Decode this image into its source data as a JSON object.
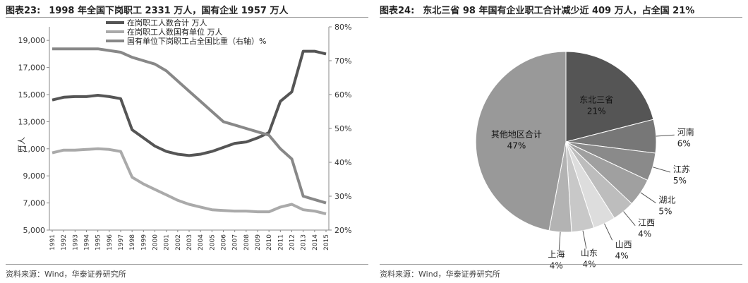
{
  "left": {
    "figure_no": "图表23:",
    "title": "1998 年全国下岗职工 2331 万人，国有企业 1957 万人",
    "source": "资料来源：Wind，华泰证券研究所"
  },
  "right": {
    "figure_no": "图表24:",
    "title": "东北三省 98 年国有企业职工合计减少近 409 万人，占全国 21%",
    "source": "资料来源：Wind，华泰证券研究所"
  },
  "colors": {
    "total": "#555555",
    "state": "#aaaaaa",
    "share": "#888888"
  },
  "chart_data": [
    {
      "type": "line",
      "ylabel": "万人",
      "y2label": "",
      "ylim": [
        5000,
        20000
      ],
      "y2lim": [
        20,
        80
      ],
      "yticks": [
        "5,000",
        "7,000",
        "9,000",
        "11,000",
        "13,000",
        "15,000",
        "17,000",
        "19,000"
      ],
      "y2ticks": [
        "20%",
        "30%",
        "40%",
        "50%",
        "60%",
        "70%",
        "80%"
      ],
      "x": [
        "1991",
        "1992",
        "1993",
        "1994",
        "1995",
        "1996",
        "1997",
        "1998",
        "1999",
        "2000",
        "2001",
        "2002",
        "2003",
        "2004",
        "2005",
        "2006",
        "2007",
        "2008",
        "2009",
        "2010",
        "2011",
        "2012",
        "2013",
        "2014",
        "2015"
      ],
      "legend": "top-center",
      "series": [
        {
          "name": "在岗职工人数合计 万人",
          "axis": "left",
          "color_key": "total",
          "values": [
            14600,
            14800,
            14850,
            14850,
            14950,
            14850,
            14700,
            12400,
            11800,
            11200,
            10800,
            10600,
            10500,
            10600,
            10800,
            11100,
            11400,
            11500,
            11800,
            12200,
            14500,
            15200,
            18200,
            18200,
            18000
          ]
        },
        {
          "name": "在岗职工人数国有单位 万人",
          "axis": "left",
          "color_key": "state",
          "values": [
            10700,
            10900,
            10900,
            10950,
            11000,
            10950,
            10800,
            8900,
            8400,
            8000,
            7600,
            7200,
            6900,
            6700,
            6500,
            6450,
            6400,
            6400,
            6350,
            6350,
            6700,
            6900,
            6500,
            6400,
            6200
          ]
        },
        {
          "name": "国有单位下岗职工占全国比重（右轴）%",
          "axis": "right",
          "color_key": "share",
          "values": [
            73.5,
            73.5,
            73.5,
            73.5,
            73.5,
            73,
            72.5,
            71,
            70,
            69,
            67,
            64,
            61,
            58,
            55,
            52,
            51,
            50,
            49,
            48,
            44,
            41,
            30,
            29,
            28
          ]
        }
      ]
    },
    {
      "type": "pie",
      "slices": [
        {
          "label": "东北三省",
          "pct_label": "21%",
          "value": 21,
          "color": "#555555"
        },
        {
          "label": "河南",
          "pct_label": "6%",
          "value": 6,
          "color": "#777777"
        },
        {
          "label": "江苏",
          "pct_label": "5%",
          "value": 5,
          "color": "#8a8a8a"
        },
        {
          "label": "湖北",
          "pct_label": "5%",
          "value": 5,
          "color": "#a0a0a0"
        },
        {
          "label": "江西",
          "pct_label": "4%",
          "value": 4,
          "color": "#bdbdbd"
        },
        {
          "label": "山西",
          "pct_label": "4%",
          "value": 4,
          "color": "#dddddd"
        },
        {
          "label": "山东",
          "pct_label": "4%",
          "value": 4,
          "color": "#c8c8c8"
        },
        {
          "label": "上海",
          "pct_label": "4%",
          "value": 4,
          "color": "#b3b3b3"
        },
        {
          "label": "其他地区合计",
          "pct_label": "47%",
          "value": 47,
          "color": "#999999"
        }
      ]
    }
  ]
}
